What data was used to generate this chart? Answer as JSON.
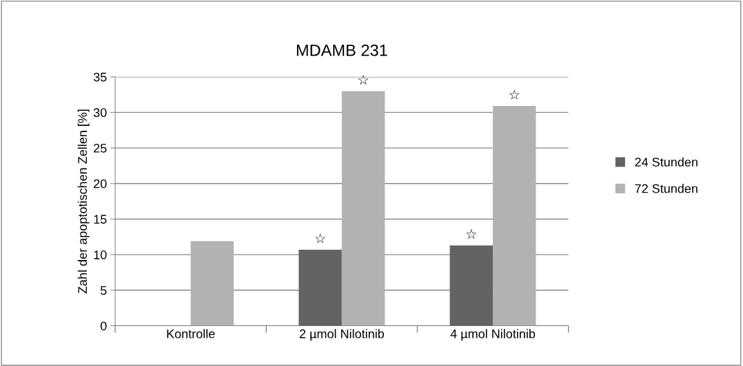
{
  "chart_data": {
    "type": "bar",
    "title": "MDAMB 231",
    "ylabel": "Zahl der apoptotischen Zellen [%]",
    "categories": [
      "Kontrolle",
      "2 µmol Nilotinib",
      "4 µmol Nilotinib"
    ],
    "series": [
      {
        "name": "24 Stunden",
        "color": "#636363",
        "values": [
          null,
          10.7,
          11.3
        ]
      },
      {
        "name": "72 Stunden",
        "color": "#b2b2b2",
        "values": [
          11.9,
          33.0,
          30.9
        ]
      }
    ],
    "ylim": [
      0,
      35
    ],
    "yticks": [
      0,
      5,
      10,
      15,
      20,
      25,
      30,
      35
    ],
    "grid": "y",
    "legend": "right",
    "annotations": [
      {
        "text": "☆",
        "x": "2 µmol Nilotinib",
        "y": 10.7
      },
      {
        "text": "☆",
        "x": "2 µmol Nilotinib",
        "y": 33.0
      },
      {
        "text": "☆",
        "x": "4 µmol Nilotinib",
        "y": 11.3
      },
      {
        "text": "☆",
        "x": "4 µmol Nilotinib",
        "y": 30.9
      }
    ]
  }
}
